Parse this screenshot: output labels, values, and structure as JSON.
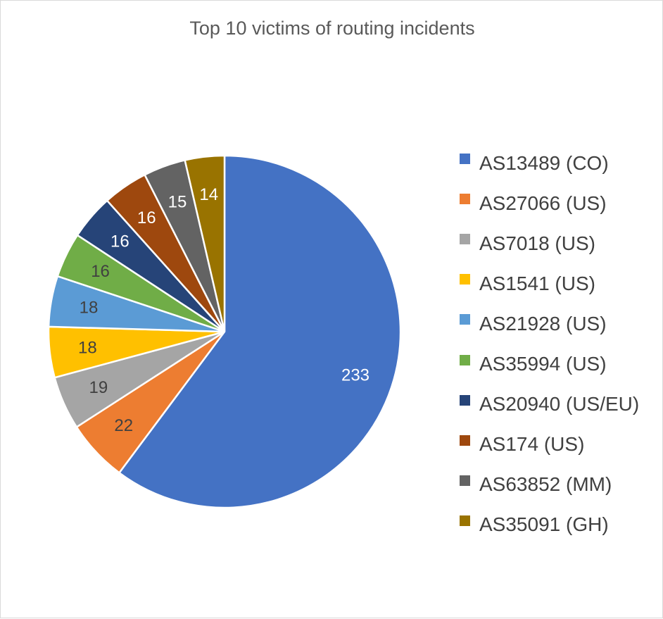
{
  "chart_data": {
    "type": "pie",
    "title": "Top 10 victims of routing incidents",
    "start_angle_deg": 0,
    "direction": "clockwise",
    "legend_position": "right",
    "slices": [
      {
        "label": "AS13489 (CO)",
        "value": 233,
        "color": "#4472C4",
        "label_color": "#ffffff"
      },
      {
        "label": "AS27066 (US)",
        "value": 22,
        "color": "#ED7D31",
        "label_color": "#404040"
      },
      {
        "label": "AS7018 (US)",
        "value": 19,
        "color": "#A5A5A5",
        "label_color": "#404040"
      },
      {
        "label": "AS1541 (US)",
        "value": 18,
        "color": "#FFC000",
        "label_color": "#404040"
      },
      {
        "label": "AS21928 (US)",
        "value": 18,
        "color": "#5B9BD5",
        "label_color": "#404040"
      },
      {
        "label": "AS35994 (US)",
        "value": 16,
        "color": "#70AD47",
        "label_color": "#404040"
      },
      {
        "label": "AS20940 (US/EU)",
        "value": 16,
        "color": "#264478",
        "label_color": "#ffffff"
      },
      {
        "label": "AS174 (US)",
        "value": 16,
        "color": "#9E480E",
        "label_color": "#ffffff"
      },
      {
        "label": "AS63852 (MM)",
        "value": 15,
        "color": "#636363",
        "label_color": "#ffffff"
      },
      {
        "label": "AS35091 (GH)",
        "value": 14,
        "color": "#997300",
        "label_color": "#ffffff"
      }
    ]
  }
}
